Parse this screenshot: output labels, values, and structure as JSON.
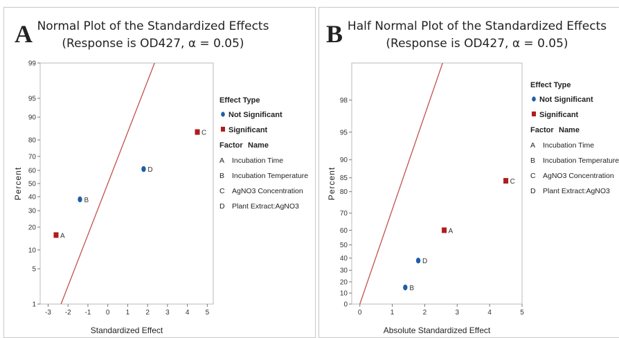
{
  "colors": {
    "line": "#c0504d",
    "not_significant": "#1f5ea8",
    "significant": "#b01d1d",
    "frame": "#b9b9b9"
  },
  "chart_data": [
    {
      "type": "scatter",
      "panel_label": "A",
      "title": "Normal Plot of the Standardized Effects",
      "subtitle": "(Response is OD427, α = 0.05)",
      "xlabel": "Standardized Effect",
      "ylabel": "Percent",
      "xlim": [
        -3.4,
        5.3
      ],
      "xticks": [
        "-3",
        "-2",
        "-1",
        "0",
        "1",
        "2",
        "3",
        "4",
        "5"
      ],
      "yscale": "normal-probability",
      "yticks": [
        "1",
        "5",
        "10",
        "20",
        "30",
        "40",
        "50",
        "60",
        "70",
        "80",
        "90",
        "95",
        "99"
      ],
      "reference_line": {
        "x": [
          -2.35,
          2.35
        ],
        "y": [
          1,
          99
        ]
      },
      "points": [
        {
          "label": "A",
          "x": -2.6,
          "y": 16,
          "type": "Significant"
        },
        {
          "label": "B",
          "x": -1.4,
          "y": 38,
          "type": "Not Significant"
        },
        {
          "label": "C",
          "x": 4.5,
          "y": 84,
          "type": "Significant"
        },
        {
          "label": "D",
          "x": 1.8,
          "y": 61,
          "type": "Not Significant"
        }
      ],
      "legend": {
        "effect_type_title": "Effect Type",
        "effect_types": [
          "Not Significant",
          "Significant"
        ],
        "factor_header": [
          "Factor",
          "Name"
        ],
        "factors": [
          {
            "factor": "A",
            "name": "Incubation Time"
          },
          {
            "factor": "B",
            "name": "Incubation Temperature"
          },
          {
            "factor": "C",
            "name": "AgNO3 Concentration"
          },
          {
            "factor": "D",
            "name": "Plant Extract:AgNO3"
          }
        ]
      }
    },
    {
      "type": "scatter",
      "panel_label": "B",
      "title": "Half Normal Plot of the Standardized Effects",
      "subtitle": "(Response is OD427, α = 0.05)",
      "xlabel": "Absolute Standardized Effect",
      "ylabel": "Percent",
      "xlim": [
        -0.25,
        5.0
      ],
      "xticks": [
        "0",
        "1",
        "2",
        "3",
        "4",
        "5"
      ],
      "yscale": "half-normal-probability",
      "yticks": [
        "0",
        "10",
        "20",
        "30",
        "40",
        "50",
        "60",
        "70",
        "80",
        "85",
        "90",
        "95",
        "98"
      ],
      "reference_line": {
        "x": [
          0,
          2.55
        ],
        "y": [
          0,
          99.4
        ]
      },
      "points": [
        {
          "label": "A",
          "x": 2.6,
          "y": 60,
          "type": "Significant"
        },
        {
          "label": "B",
          "x": 1.4,
          "y": 15,
          "type": "Not Significant"
        },
        {
          "label": "C",
          "x": 4.5,
          "y": 84,
          "type": "Significant"
        },
        {
          "label": "D",
          "x": 1.8,
          "y": 38,
          "type": "Not Significant"
        }
      ],
      "legend": {
        "effect_type_title": "Effect Type",
        "effect_types": [
          "Not Significant",
          "Significant"
        ],
        "factor_header": [
          "Factor",
          "Name"
        ],
        "factors": [
          {
            "factor": "A",
            "name": "Incubation Time"
          },
          {
            "factor": "B",
            "name": "Incubation Temperature"
          },
          {
            "factor": "C",
            "name": "AgNO3 Concentration"
          },
          {
            "factor": "D",
            "name": "Plant Extract:AgNO3"
          }
        ]
      }
    }
  ]
}
